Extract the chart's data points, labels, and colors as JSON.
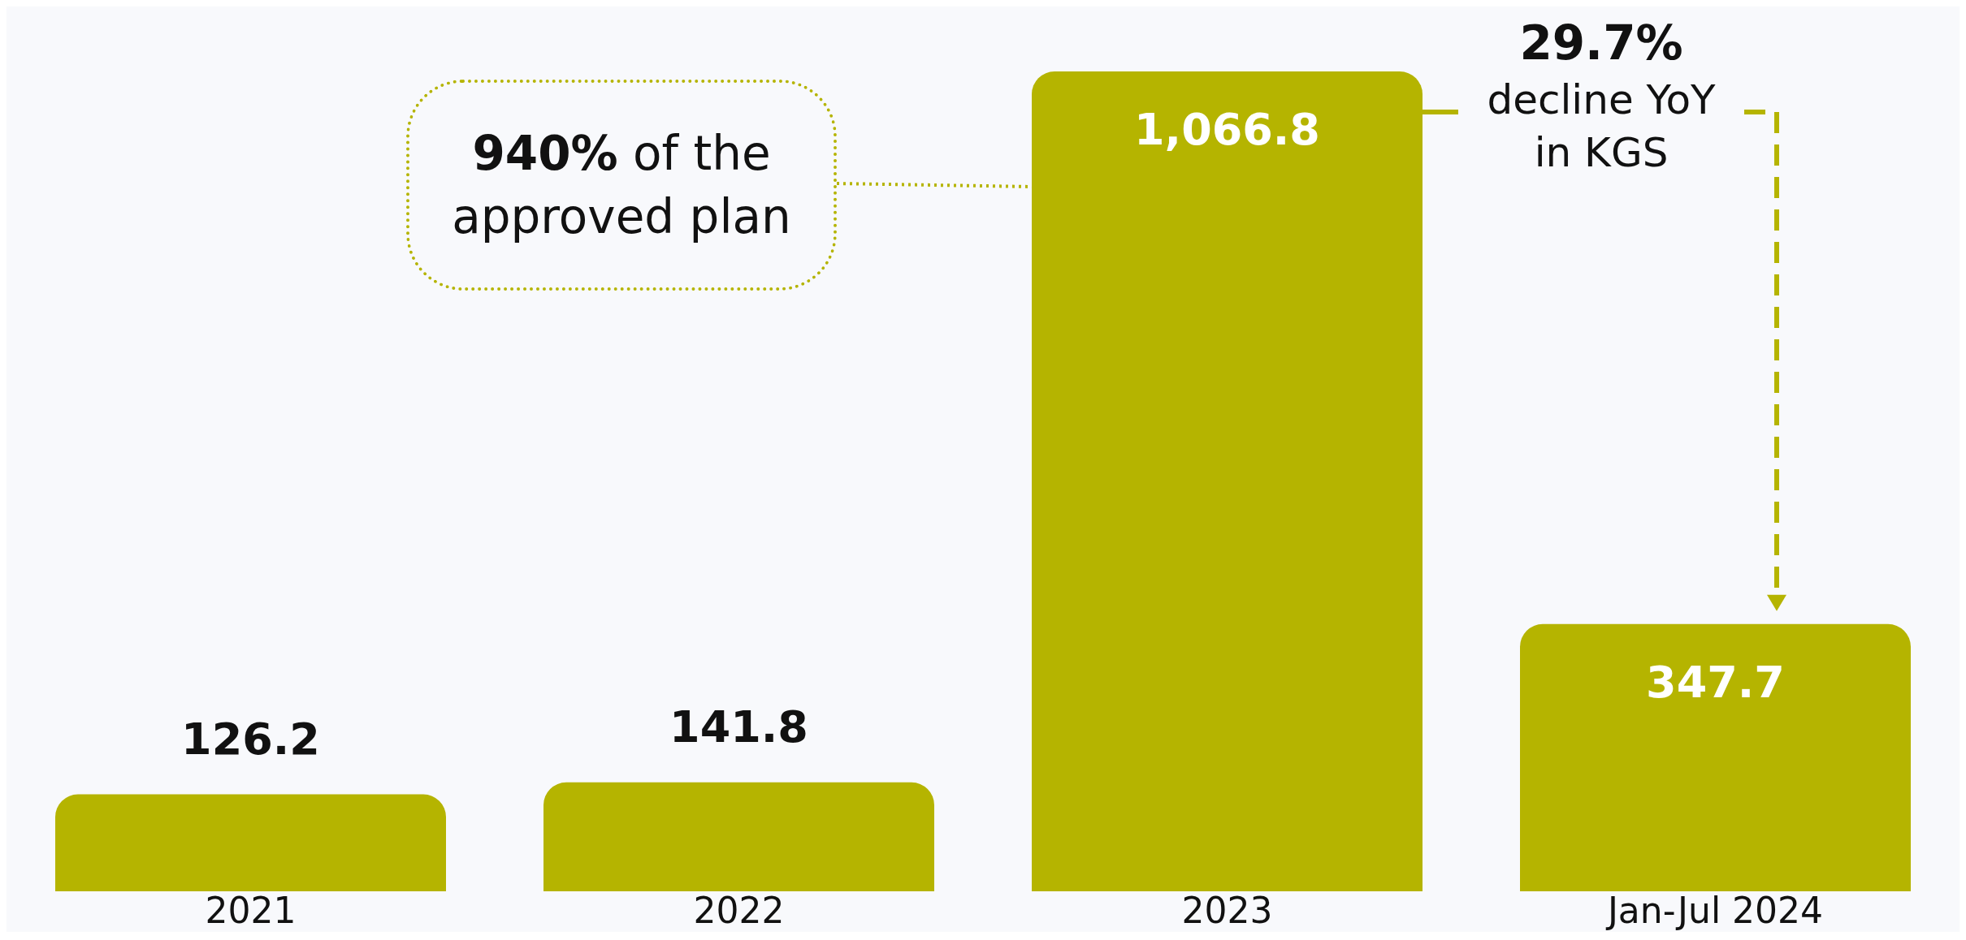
{
  "chart_data": {
    "type": "bar",
    "categories": [
      "2021",
      "2022",
      "2023",
      "Jan-Jul 2024"
    ],
    "values": [
      126.2,
      141.8,
      1066.8,
      347.7
    ],
    "color": "#b5b400",
    "value_labels": [
      "126.2",
      "141.8",
      "1,066.8",
      "347.7"
    ],
    "grid": false,
    "legend": false,
    "annotations": [
      "940% of the approved plan",
      "29.7% decline YoY in KGS"
    ]
  }
}
